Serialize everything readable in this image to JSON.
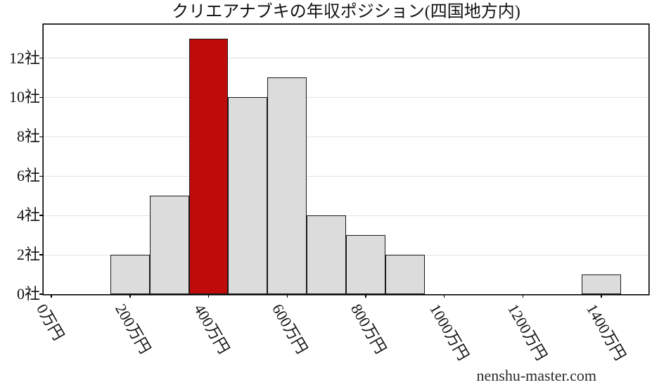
{
  "page": {
    "watermark": "nenshu-master.com"
  },
  "chart_data": {
    "type": "bar",
    "title": "クリエアナブキの年収ポジション(四国地方内)",
    "xlabel": "",
    "ylabel": "",
    "x_unit": "万円",
    "y_unit": "社",
    "bin_width": 100,
    "bars": [
      {
        "center": 200,
        "value": 2,
        "highlight": false
      },
      {
        "center": 300,
        "value": 5,
        "highlight": false
      },
      {
        "center": 400,
        "value": 13,
        "highlight": true
      },
      {
        "center": 500,
        "value": 10,
        "highlight": false
      },
      {
        "center": 600,
        "value": 11,
        "highlight": false
      },
      {
        "center": 700,
        "value": 4,
        "highlight": false
      },
      {
        "center": 800,
        "value": 3,
        "highlight": false
      },
      {
        "center": 900,
        "value": 2,
        "highlight": false
      },
      {
        "center": 1400,
        "value": 1,
        "highlight": false
      }
    ],
    "x_ticks": [
      {
        "value": 0,
        "label": "0万円"
      },
      {
        "value": 200,
        "label": "200万円"
      },
      {
        "value": 400,
        "label": "400万円"
      },
      {
        "value": 600,
        "label": "600万円"
      },
      {
        "value": 800,
        "label": "800万円"
      },
      {
        "value": 1000,
        "label": "1000万円"
      },
      {
        "value": 1200,
        "label": "1200万円"
      },
      {
        "value": 1400,
        "label": "1400万円"
      }
    ],
    "y_ticks": [
      {
        "value": 0,
        "label": "0社"
      },
      {
        "value": 2,
        "label": "2社"
      },
      {
        "value": 4,
        "label": "4社"
      },
      {
        "value": 6,
        "label": "6社"
      },
      {
        "value": 8,
        "label": "8社"
      },
      {
        "value": 10,
        "label": "10社"
      },
      {
        "value": 12,
        "label": "12社"
      }
    ],
    "xlim": [
      -20,
      1520
    ],
    "ylim": [
      0,
      13.7
    ],
    "grid": "horizontal",
    "legend": "none",
    "colors": {
      "bar_fill": "#dcdcdc",
      "bar_edge": "#1a1a1a",
      "highlight_fill": "#c00b0b",
      "grid_line": "#e2e2e2",
      "axis_border": "#000000",
      "text": "#111111"
    }
  }
}
